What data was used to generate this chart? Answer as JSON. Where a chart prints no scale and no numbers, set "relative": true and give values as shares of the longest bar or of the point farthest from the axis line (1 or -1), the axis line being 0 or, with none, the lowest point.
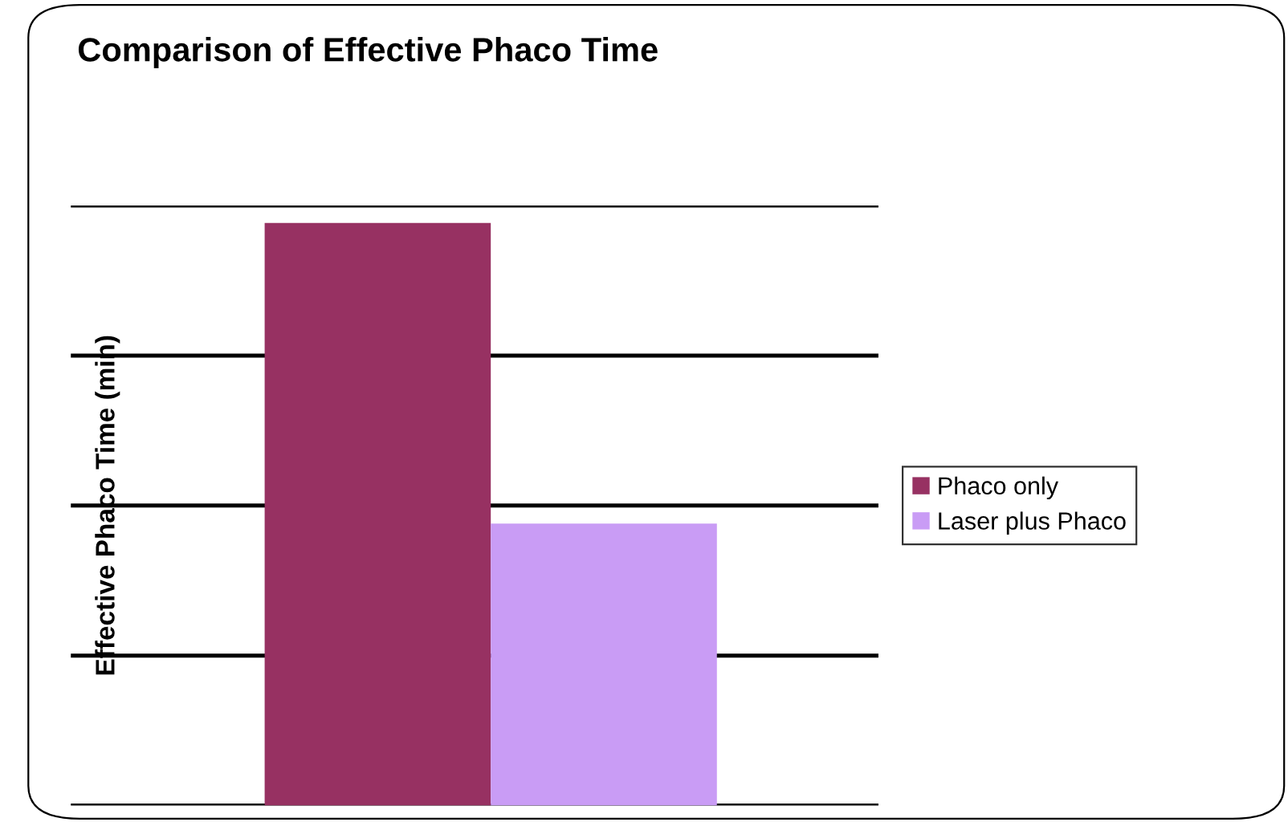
{
  "chart_data": {
    "type": "bar",
    "title": "Comparison of Effective Phaco Time",
    "ylabel": "Effective Phaco Time (min)",
    "categories": [
      null
    ],
    "series": [
      {
        "name": "Phaco only",
        "color": "#973162",
        "values": [
          1
        ]
      },
      {
        "name": "Laser plus Phaco",
        "color": "#c99cf5",
        "values": [
          0.484
        ]
      }
    ],
    "relative": true,
    "grid": "y",
    "legend": "right"
  }
}
